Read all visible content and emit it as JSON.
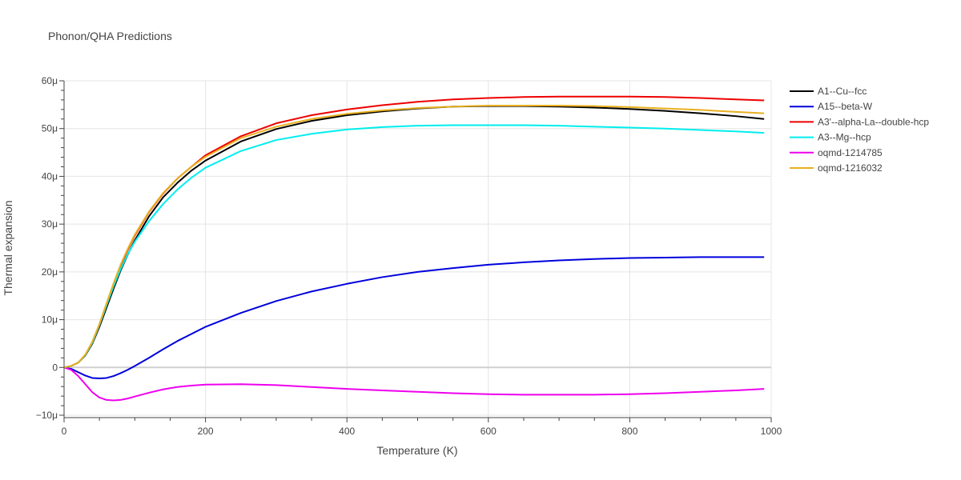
{
  "chart_data": {
    "type": "line",
    "title": "Phonon/QHA Predictions",
    "xlabel": "Temperature (K)",
    "ylabel": "Thermal expansion",
    "xlim": [
      0,
      1000
    ],
    "ylim": [
      -10.5,
      60
    ],
    "x_ticks": [
      0,
      200,
      400,
      600,
      800,
      1000
    ],
    "x_tick_labels": [
      "0",
      "200",
      "400",
      "600",
      "800",
      "1000"
    ],
    "y_ticks": [
      -10,
      0,
      10,
      20,
      30,
      40,
      50,
      60
    ],
    "y_tick_labels": [
      "−10μ",
      "0",
      "10μ",
      "20μ",
      "30μ",
      "40μ",
      "50μ",
      "60μ"
    ],
    "grid": true,
    "legend_position": "right",
    "x": [
      0,
      10,
      20,
      30,
      40,
      50,
      60,
      70,
      80,
      90,
      100,
      120,
      140,
      160,
      180,
      200,
      250,
      300,
      350,
      400,
      450,
      500,
      550,
      600,
      650,
      700,
      750,
      800,
      850,
      900,
      950,
      990
    ],
    "series": [
      {
        "name": "A1--Cu--fcc",
        "color": "#000000",
        "values": [
          0,
          0.3,
          1.0,
          2.5,
          5.0,
          8.5,
          12.5,
          16.5,
          20.3,
          23.6,
          26.6,
          31.6,
          35.6,
          38.6,
          41.2,
          43.3,
          47.3,
          49.9,
          51.6,
          52.8,
          53.6,
          54.2,
          54.6,
          54.7,
          54.7,
          54.6,
          54.4,
          54.1,
          53.7,
          53.2,
          52.6,
          52.0
        ]
      },
      {
        "name": "A15--beta-W",
        "color": "#0000dd",
        "values": [
          0,
          -0.3,
          -1.0,
          -1.7,
          -2.2,
          -2.3,
          -2.2,
          -1.8,
          -1.2,
          -0.5,
          0.3,
          2.0,
          3.8,
          5.5,
          7.0,
          8.5,
          11.4,
          13.9,
          15.9,
          17.5,
          18.9,
          20.0,
          20.8,
          21.5,
          22.0,
          22.4,
          22.7,
          22.9,
          23.0,
          23.1,
          23.1,
          23.1
        ]
      },
      {
        "name": "A3'--alpha-La--double-hcp",
        "color": "#ee0000",
        "values": [
          0,
          0.3,
          1.0,
          2.6,
          5.2,
          8.9,
          13.1,
          17.3,
          21.2,
          24.6,
          27.6,
          32.5,
          36.4,
          39.5,
          42.0,
          44.4,
          48.4,
          51.1,
          52.8,
          54.0,
          54.9,
          55.6,
          56.1,
          56.4,
          56.6,
          56.7,
          56.7,
          56.7,
          56.6,
          56.4,
          56.1,
          55.9
        ]
      },
      {
        "name": "A3--Mg--hcp",
        "color": "#00eeee",
        "values": [
          0,
          0.3,
          1.0,
          2.6,
          5.2,
          8.9,
          13.0,
          17.0,
          20.6,
          23.7,
          26.3,
          30.6,
          34.2,
          37.2,
          39.7,
          41.8,
          45.3,
          47.6,
          48.9,
          49.8,
          50.3,
          50.6,
          50.7,
          50.7,
          50.7,
          50.6,
          50.4,
          50.2,
          50.0,
          49.7,
          49.4,
          49.1
        ]
      },
      {
        "name": "oqmd-1214785",
        "color": "#ee00ee",
        "values": [
          0,
          -0.5,
          -1.8,
          -3.5,
          -5.2,
          -6.3,
          -6.8,
          -6.9,
          -6.8,
          -6.5,
          -6.1,
          -5.3,
          -4.6,
          -4.1,
          -3.8,
          -3.6,
          -3.5,
          -3.7,
          -4.1,
          -4.5,
          -4.8,
          -5.1,
          -5.4,
          -5.6,
          -5.7,
          -5.7,
          -5.7,
          -5.6,
          -5.4,
          -5.1,
          -4.8,
          -4.5
        ]
      },
      {
        "name": "oqmd-1216032",
        "color": "#e8b020",
        "values": [
          0,
          0.3,
          1.0,
          2.7,
          5.4,
          9.1,
          13.4,
          17.6,
          21.5,
          24.8,
          27.8,
          32.6,
          36.5,
          39.5,
          42.0,
          44.1,
          48.0,
          50.4,
          52.0,
          53.1,
          53.8,
          54.3,
          54.6,
          54.8,
          54.8,
          54.8,
          54.7,
          54.5,
          54.2,
          53.9,
          53.5,
          53.2
        ]
      }
    ]
  }
}
